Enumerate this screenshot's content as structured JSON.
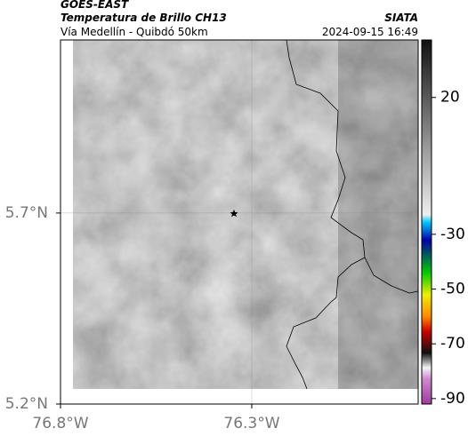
{
  "header": {
    "source": "GOES-EAST",
    "title": "Temperatura de Brillo CH13",
    "subtitle": "Vía Medellín - Quibdó 50km",
    "brand": "SIATA",
    "timestamp": "2024-09-15 16:49"
  },
  "map": {
    "xlim": [
      -76.8,
      -75.865
    ],
    "ylim": [
      5.2,
      6.153
    ],
    "xticks": [
      {
        "value": -76.8,
        "label": "76.8°W"
      },
      {
        "value": -76.3,
        "label": "76.3°W"
      }
    ],
    "yticks": [
      {
        "value": 5.7,
        "label": "5.7°N"
      },
      {
        "value": 5.2,
        "label": "5.2°N"
      }
    ]
  },
  "colorbar": {
    "lim": [
      -92,
      41
    ],
    "ticks": [
      20,
      -30,
      -50,
      -70,
      -90
    ]
  }
}
